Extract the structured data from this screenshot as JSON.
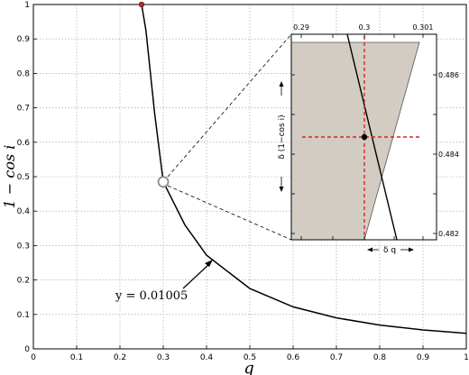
{
  "chart_data": [
    {
      "type": "line",
      "xlabel": "q",
      "ylabel": "1 − cos i",
      "xlim": [
        0,
        1
      ],
      "ylim": [
        0,
        1
      ],
      "xticks": [
        "0",
        "0.1",
        "0.2",
        "0.3",
        "0.4",
        "0.5",
        "0.6",
        "0.7",
        "0.8",
        "0.9",
        "1"
      ],
      "yticks": [
        "0",
        "0.1",
        "0.2",
        "0.3",
        "0.4",
        "0.5",
        "0.6",
        "0.7",
        "0.8",
        "0.9",
        "1"
      ],
      "grid": true,
      "series": [
        {
          "y_times_q_squared": 0.01005,
          "x": [
            0.25,
            0.26,
            0.28,
            0.3,
            0.35,
            0.4,
            0.5,
            0.6,
            0.7,
            0.8,
            0.9,
            1.0
          ],
          "y": [
            1.0,
            0.925,
            0.685,
            0.485,
            0.36,
            0.272,
            0.175,
            0.122,
            0.09,
            0.069,
            0.055,
            0.045
          ],
          "color": "#000000"
        }
      ],
      "markers": [
        {
          "x": 0.25,
          "y": 1.0,
          "color": "#cc2222",
          "shape": "dot"
        },
        {
          "x": 0.3,
          "y": 0.485,
          "color": "#8c8c8c",
          "shape": "open-circle"
        }
      ],
      "annotation": {
        "text": "y = 0.01005",
        "points_to_x": 0.41
      }
    },
    {
      "type": "area",
      "role": "inset",
      "xticks": [
        "0.29",
        "0.3",
        "0.301"
      ],
      "yticks": [
        "0.486",
        "0.484",
        "0.482"
      ],
      "xlabel": "δ q",
      "ylabel": "δ (1−cos i)",
      "band_color": "#d2ccc3",
      "crosshair_color": "#dd2222",
      "center_point": {
        "x": 0.3,
        "y": 0.4845
      }
    }
  ]
}
